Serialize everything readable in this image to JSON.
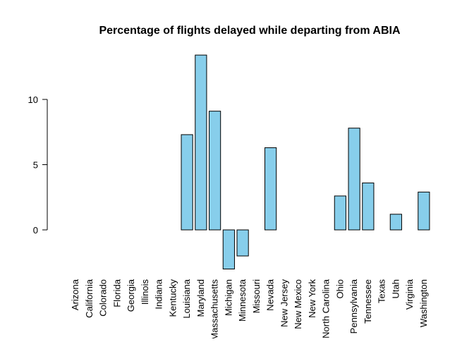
{
  "chart_data": {
    "type": "bar",
    "title": "Percentage of flights delayed while departing from ABIA",
    "xlabel": "",
    "ylabel": "",
    "categories": [
      "Arizona",
      "California",
      "Colorado",
      "Florida",
      "Georgia",
      "Illinois",
      "Indiana",
      "Kentucky",
      "Louisiana",
      "Maryland",
      "Massachusetts",
      "Michigan",
      "Minnesota",
      "Missouri",
      "Nevada",
      "New Jersey",
      "New Mexico",
      "New York",
      "North Carolina",
      "Ohio",
      "Pennsylvania",
      "Tennessee",
      "Texas",
      "Utah",
      "Virginia",
      "Washington"
    ],
    "values": [
      0,
      0,
      0,
      0,
      0,
      0,
      0,
      0,
      7.3,
      13.4,
      9.1,
      -3.0,
      -2.0,
      0,
      6.3,
      0,
      0,
      0,
      0,
      2.6,
      7.8,
      3.6,
      0,
      1.2,
      0,
      2.9
    ],
    "ylim": [
      -3.5,
      13.5
    ],
    "yticks": [
      0,
      5,
      10
    ],
    "grid": false,
    "bar_color": "#87CEEB",
    "bar_edge_color": "#000000"
  }
}
